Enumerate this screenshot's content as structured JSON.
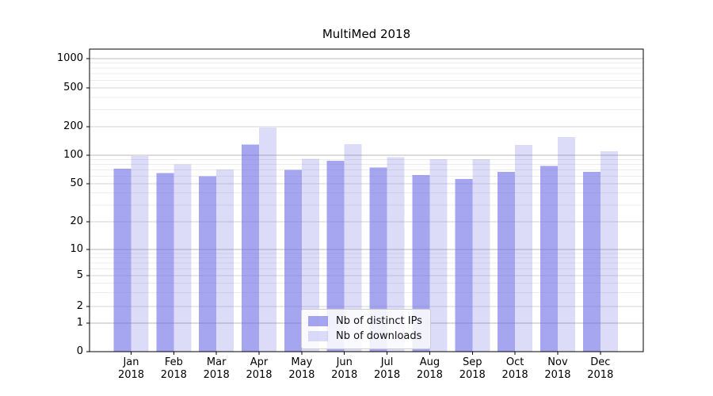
{
  "chart_data": {
    "type": "bar",
    "title": "MultiMed 2018",
    "categories": [
      "Jan",
      "Feb",
      "Mar",
      "Apr",
      "May",
      "Jun",
      "Jul",
      "Aug",
      "Sep",
      "Oct",
      "Nov",
      "Dec"
    ],
    "category_year": "2018",
    "series": [
      {
        "name": "Nb of distinct IPs",
        "values": [
          72,
          65,
          60,
          130,
          70,
          87,
          74,
          62,
          56,
          67,
          77,
          67
        ],
        "fill": "rgba(110,110,230,0.62)"
      },
      {
        "name": "Nb of downloads",
        "values": [
          98,
          80,
          71,
          196,
          92,
          131,
          95,
          91,
          91,
          129,
          156,
          110
        ],
        "fill": "rgba(110,110,230,0.24)"
      }
    ],
    "yscale": "symlog",
    "ylim": [
      0,
      1000
    ],
    "y_ticks": [
      0,
      1,
      2,
      5,
      10,
      20,
      50,
      100,
      200,
      500,
      1000
    ],
    "grid": true,
    "legend_position": "lower center",
    "colors": {
      "major_grid": "#b9b9b9",
      "mid_grid": "#d6d6d6",
      "minor_grid": "#ececec",
      "axis": "#000000",
      "text": "#000000",
      "legend_border": "#cccccc"
    }
  }
}
